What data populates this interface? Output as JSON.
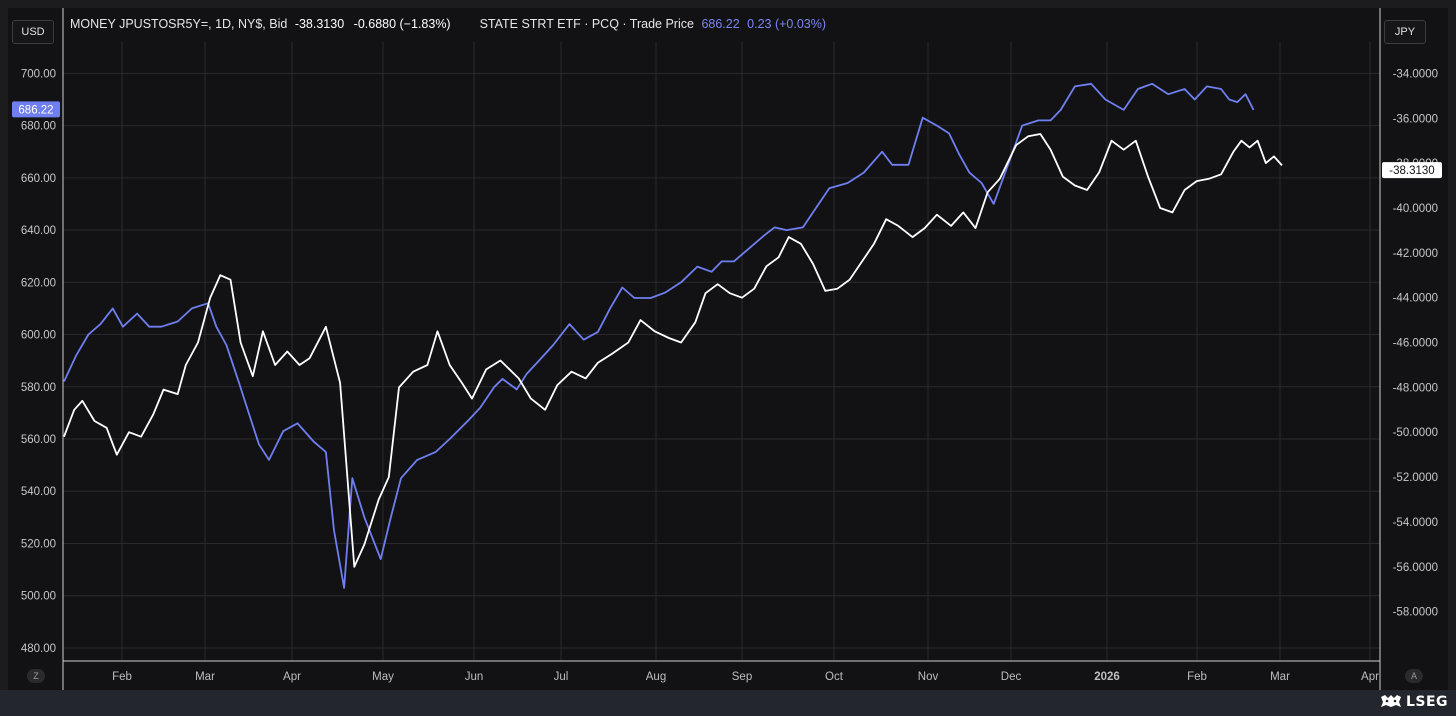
{
  "header": {
    "left_currency": "USD",
    "right_currency": "JPY",
    "series1_name": "MONEY JPUSTOSR5Y=, 1D, NY$, Bid",
    "series1_last": "-38.3130",
    "series1_change": "-0.6880 (−1.83%)",
    "series2_name": "STATE STRT ETF · PCQ · Trade Price",
    "series2_last": "686.22",
    "series2_change": "0.23 (+0.03%)"
  },
  "controls": {
    "bottom_left": "Z",
    "bottom_right": "A"
  },
  "brand": {
    "name": "LSEG"
  },
  "colors": {
    "background": "#121214",
    "grid": "#2a2a2e",
    "series_blue": "#6f7ff0",
    "series_white": "#ffffff"
  },
  "chart_data": {
    "type": "line",
    "title": "",
    "x_ticks": [
      "Feb",
      "Mar",
      "Apr",
      "May",
      "Jun",
      "Jul",
      "Aug",
      "Sep",
      "Oct",
      "Nov",
      "Dec",
      "2026",
      "Feb",
      "Mar",
      "Apr"
    ],
    "left_axis": {
      "unit": "USD",
      "range": [
        475,
        712
      ],
      "ticks": [
        "700.00",
        "680.00",
        "660.00",
        "640.00",
        "620.00",
        "600.00",
        "580.00",
        "560.00",
        "540.00",
        "520.00",
        "500.00",
        "480.00"
      ],
      "last_value_label": "686.22"
    },
    "right_axis": {
      "unit": "JPY",
      "range": [
        -60.2,
        -32.6
      ],
      "ticks": [
        "-34.0000",
        "-36.0000",
        "-38.0000",
        "-40.0000",
        "-42.0000",
        "-44.0000",
        "-46.0000",
        "-48.0000",
        "-50.0000",
        "-52.0000",
        "-54.0000",
        "-56.0000",
        "-58.0000"
      ],
      "last_value_label": "-38.3130"
    },
    "grid": true,
    "series": [
      {
        "name": "STATE STRT ETF · PCQ · Trade Price",
        "axis": "left",
        "color": "#6f7ff0",
        "points": [
          [
            0.0,
            582
          ],
          [
            0.6,
            592
          ],
          [
            1.2,
            600
          ],
          [
            1.8,
            604
          ],
          [
            2.4,
            610
          ],
          [
            2.9,
            603
          ],
          [
            3.6,
            608
          ],
          [
            4.2,
            603
          ],
          [
            4.8,
            603
          ],
          [
            5.6,
            605
          ],
          [
            6.3,
            610
          ],
          [
            7.1,
            612
          ],
          [
            7.5,
            603
          ],
          [
            8.0,
            596
          ],
          [
            8.6,
            582
          ],
          [
            9.1,
            570
          ],
          [
            9.6,
            558
          ],
          [
            10.1,
            552
          ],
          [
            10.8,
            563
          ],
          [
            11.5,
            566
          ],
          [
            12.3,
            559
          ],
          [
            12.9,
            555
          ],
          [
            13.3,
            525
          ],
          [
            13.8,
            503
          ],
          [
            14.2,
            545
          ],
          [
            14.8,
            530
          ],
          [
            15.6,
            514
          ],
          [
            16.1,
            530
          ],
          [
            16.6,
            545
          ],
          [
            17.4,
            552
          ],
          [
            18.3,
            555
          ],
          [
            19.0,
            560
          ],
          [
            19.9,
            567
          ],
          [
            20.5,
            572
          ],
          [
            21.2,
            580
          ],
          [
            21.6,
            583
          ],
          [
            22.3,
            579
          ],
          [
            22.8,
            585
          ],
          [
            23.4,
            590
          ],
          [
            24.1,
            596
          ],
          [
            24.9,
            604
          ],
          [
            25.6,
            598
          ],
          [
            26.3,
            601
          ],
          [
            26.9,
            610
          ],
          [
            27.5,
            618
          ],
          [
            28.1,
            614
          ],
          [
            28.9,
            614
          ],
          [
            29.6,
            616
          ],
          [
            30.4,
            620
          ],
          [
            31.2,
            626
          ],
          [
            31.9,
            624
          ],
          [
            32.4,
            628
          ],
          [
            33.0,
            628
          ],
          [
            33.6,
            632
          ],
          [
            34.5,
            638
          ],
          [
            35.0,
            641
          ],
          [
            35.6,
            640
          ],
          [
            36.4,
            641
          ],
          [
            37.0,
            648
          ],
          [
            37.7,
            656
          ],
          [
            38.6,
            658
          ],
          [
            39.4,
            662
          ],
          [
            40.3,
            670
          ],
          [
            40.8,
            665
          ],
          [
            41.6,
            665
          ],
          [
            42.3,
            683
          ],
          [
            43.0,
            680
          ],
          [
            43.6,
            677
          ],
          [
            44.1,
            669
          ],
          [
            44.6,
            662
          ],
          [
            45.2,
            658
          ],
          [
            45.8,
            650
          ],
          [
            46.6,
            667
          ],
          [
            47.2,
            680
          ],
          [
            48.0,
            682
          ],
          [
            48.6,
            682
          ],
          [
            49.1,
            686
          ],
          [
            49.8,
            695
          ],
          [
            50.6,
            696
          ],
          [
            51.3,
            690
          ],
          [
            52.2,
            686
          ],
          [
            52.9,
            694
          ],
          [
            53.6,
            696
          ],
          [
            54.4,
            692
          ],
          [
            55.2,
            694
          ],
          [
            55.7,
            690
          ],
          [
            56.3,
            695
          ],
          [
            57.0,
            694
          ],
          [
            57.4,
            690
          ],
          [
            57.8,
            689
          ],
          [
            58.2,
            692
          ],
          [
            58.6,
            686
          ]
        ]
      },
      {
        "name": "MONEY JPUSTOSR5Y=, 1D, NY$, Bid",
        "axis": "right",
        "color": "#ffffff",
        "points": [
          [
            0.0,
            -50.2
          ],
          [
            0.5,
            -49.0
          ],
          [
            0.9,
            -48.6
          ],
          [
            1.5,
            -49.5
          ],
          [
            2.1,
            -49.8
          ],
          [
            2.6,
            -51.0
          ],
          [
            3.2,
            -50.0
          ],
          [
            3.8,
            -50.2
          ],
          [
            4.4,
            -49.2
          ],
          [
            4.9,
            -48.1
          ],
          [
            5.6,
            -48.3
          ],
          [
            6.0,
            -47.0
          ],
          [
            6.6,
            -46.0
          ],
          [
            7.2,
            -44.0
          ],
          [
            7.7,
            -43.0
          ],
          [
            8.2,
            -43.2
          ],
          [
            8.7,
            -46.0
          ],
          [
            9.3,
            -47.5
          ],
          [
            9.8,
            -45.5
          ],
          [
            10.4,
            -47.0
          ],
          [
            11.0,
            -46.4
          ],
          [
            11.6,
            -47.0
          ],
          [
            12.1,
            -46.7
          ],
          [
            12.9,
            -45.3
          ],
          [
            13.6,
            -47.8
          ],
          [
            14.3,
            -56.0
          ],
          [
            14.8,
            -55.0
          ],
          [
            15.5,
            -53.0
          ],
          [
            16.0,
            -52.0
          ],
          [
            16.5,
            -48.0
          ],
          [
            17.2,
            -47.3
          ],
          [
            17.9,
            -47.0
          ],
          [
            18.4,
            -45.5
          ],
          [
            19.0,
            -47.0
          ],
          [
            19.6,
            -47.8
          ],
          [
            20.1,
            -48.5
          ],
          [
            20.8,
            -47.2
          ],
          [
            21.5,
            -46.8
          ],
          [
            22.4,
            -47.6
          ],
          [
            23.0,
            -48.5
          ],
          [
            23.7,
            -49.0
          ],
          [
            24.3,
            -47.9
          ],
          [
            25.0,
            -47.3
          ],
          [
            25.7,
            -47.6
          ],
          [
            26.3,
            -46.9
          ],
          [
            27.0,
            -46.5
          ],
          [
            27.8,
            -46.0
          ],
          [
            28.4,
            -45.0
          ],
          [
            29.1,
            -45.5
          ],
          [
            29.8,
            -45.8
          ],
          [
            30.4,
            -46.0
          ],
          [
            31.1,
            -45.1
          ],
          [
            31.6,
            -43.8
          ],
          [
            32.2,
            -43.4
          ],
          [
            32.8,
            -43.8
          ],
          [
            33.4,
            -44.0
          ],
          [
            34.0,
            -43.6
          ],
          [
            34.6,
            -42.6
          ],
          [
            35.2,
            -42.2
          ],
          [
            35.7,
            -41.3
          ],
          [
            36.3,
            -41.6
          ],
          [
            36.9,
            -42.5
          ],
          [
            37.5,
            -43.7
          ],
          [
            38.1,
            -43.6
          ],
          [
            38.7,
            -43.2
          ],
          [
            39.3,
            -42.4
          ],
          [
            39.9,
            -41.6
          ],
          [
            40.5,
            -40.5
          ],
          [
            41.1,
            -40.8
          ],
          [
            41.8,
            -41.3
          ],
          [
            42.4,
            -40.9
          ],
          [
            43.0,
            -40.3
          ],
          [
            43.7,
            -40.8
          ],
          [
            44.3,
            -40.2
          ],
          [
            44.9,
            -40.9
          ],
          [
            45.5,
            -39.3
          ],
          [
            46.1,
            -38.7
          ],
          [
            46.9,
            -37.2
          ],
          [
            47.5,
            -36.8
          ],
          [
            48.1,
            -36.7
          ],
          [
            48.6,
            -37.4
          ],
          [
            49.2,
            -38.6
          ],
          [
            49.8,
            -39.0
          ],
          [
            50.4,
            -39.2
          ],
          [
            51.0,
            -38.4
          ],
          [
            51.6,
            -37.0
          ],
          [
            52.2,
            -37.4
          ],
          [
            52.8,
            -37.0
          ],
          [
            53.4,
            -38.6
          ],
          [
            54.0,
            -40.0
          ],
          [
            54.6,
            -40.2
          ],
          [
            55.2,
            -39.2
          ],
          [
            55.8,
            -38.8
          ],
          [
            56.4,
            -38.7
          ],
          [
            57.0,
            -38.5
          ],
          [
            57.6,
            -37.5
          ],
          [
            58.0,
            -37.0
          ],
          [
            58.4,
            -37.3
          ],
          [
            58.8,
            -37.0
          ],
          [
            59.2,
            -38.0
          ],
          [
            59.6,
            -37.7
          ],
          [
            60.0,
            -38.1
          ]
        ]
      }
    ]
  }
}
